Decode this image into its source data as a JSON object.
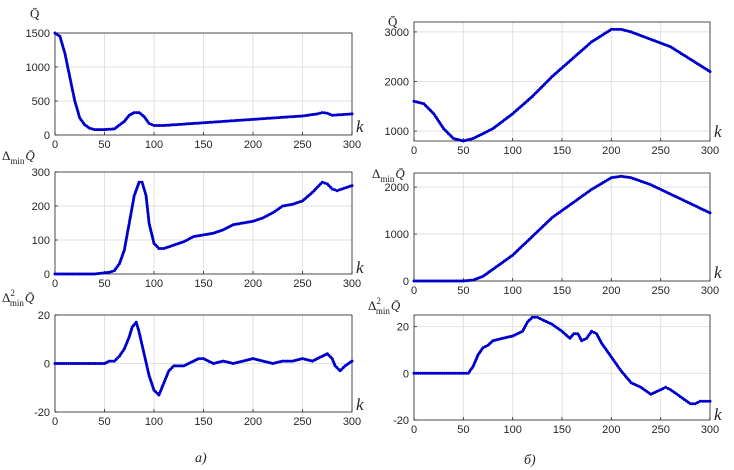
{
  "figure": {
    "caption_left": "а)",
    "caption_right": "б)",
    "series_color": "#0000cc"
  },
  "chart_data": [
    {
      "id": "a1",
      "type": "line",
      "ylabel": "Q̄",
      "xlabel": "k",
      "xlim": [
        0,
        300
      ],
      "ylim": [
        0,
        1500
      ],
      "grid": true,
      "xticks": [
        0,
        50,
        100,
        150,
        200,
        250,
        300
      ],
      "yticks": [
        0,
        500,
        1000,
        1500
      ],
      "x": [
        0,
        5,
        10,
        15,
        20,
        25,
        30,
        35,
        40,
        50,
        60,
        70,
        75,
        80,
        85,
        90,
        95,
        100,
        110,
        120,
        150,
        200,
        250,
        265,
        270,
        275,
        280,
        300
      ],
      "y": [
        1500,
        1450,
        1200,
        850,
        500,
        250,
        150,
        100,
        80,
        80,
        90,
        200,
        290,
        330,
        330,
        270,
        170,
        140,
        140,
        150,
        180,
        230,
        280,
        310,
        330,
        320,
        290,
        310
      ]
    },
    {
      "id": "a2",
      "type": "line",
      "ylabel": "Δmin Q̄",
      "xlabel": "k",
      "xlim": [
        0,
        300
      ],
      "ylim": [
        0,
        300
      ],
      "grid": true,
      "xticks": [
        0,
        50,
        100,
        150,
        200,
        250,
        300
      ],
      "yticks": [
        0,
        100,
        200,
        300
      ],
      "x": [
        0,
        40,
        55,
        60,
        65,
        70,
        75,
        80,
        85,
        88,
        92,
        95,
        100,
        105,
        110,
        120,
        130,
        140,
        150,
        160,
        170,
        180,
        190,
        200,
        210,
        220,
        230,
        240,
        250,
        260,
        265,
        270,
        275,
        280,
        285,
        290,
        300
      ],
      "y": [
        0,
        0,
        5,
        10,
        30,
        70,
        150,
        230,
        270,
        270,
        230,
        150,
        90,
        75,
        75,
        85,
        95,
        110,
        115,
        120,
        130,
        145,
        150,
        155,
        165,
        180,
        200,
        205,
        215,
        240,
        255,
        270,
        265,
        250,
        245,
        250,
        260
      ]
    },
    {
      "id": "a3",
      "type": "line",
      "ylabel": "Δ²min Q̄",
      "xlabel": "k",
      "xlim": [
        0,
        300
      ],
      "ylim": [
        -20,
        20
      ],
      "grid": true,
      "xticks": [
        0,
        50,
        100,
        150,
        200,
        250,
        300
      ],
      "yticks": [
        -20,
        0,
        20
      ],
      "x": [
        0,
        50,
        55,
        60,
        65,
        70,
        75,
        78,
        82,
        85,
        90,
        95,
        100,
        105,
        110,
        115,
        120,
        130,
        140,
        145,
        150,
        160,
        170,
        180,
        190,
        200,
        210,
        220,
        230,
        240,
        250,
        260,
        265,
        270,
        275,
        280,
        283,
        288,
        293,
        300
      ],
      "y": [
        0,
        0,
        1,
        1,
        3,
        6,
        11,
        15,
        17,
        13,
        4,
        -5,
        -11,
        -13,
        -8,
        -3,
        -1,
        -1,
        1,
        2,
        2,
        0,
        1,
        0,
        1,
        2,
        1,
        0,
        1,
        1,
        2,
        1,
        2,
        3,
        4,
        2,
        -1,
        -3,
        -1,
        1
      ]
    },
    {
      "id": "b1",
      "type": "line",
      "ylabel": "Q̄",
      "xlabel": "k",
      "xlim": [
        0,
        300
      ],
      "ylim": [
        800,
        3200
      ],
      "grid": true,
      "xticks": [
        0,
        50,
        100,
        150,
        200,
        250,
        300
      ],
      "yticks": [
        1000,
        2000,
        3000
      ],
      "x": [
        0,
        10,
        20,
        30,
        40,
        50,
        60,
        70,
        80,
        90,
        100,
        120,
        140,
        160,
        180,
        200,
        210,
        220,
        240,
        260,
        280,
        300
      ],
      "y": [
        1600,
        1550,
        1350,
        1050,
        850,
        800,
        850,
        950,
        1050,
        1200,
        1350,
        1700,
        2100,
        2450,
        2800,
        3050,
        3050,
        3000,
        2850,
        2700,
        2450,
        2200
      ]
    },
    {
      "id": "b2",
      "type": "line",
      "ylabel": "Δmin Q̄",
      "xlabel": "k",
      "xlim": [
        0,
        300
      ],
      "ylim": [
        0,
        2300
      ],
      "grid": true,
      "xticks": [
        0,
        50,
        100,
        150,
        200,
        250,
        300
      ],
      "yticks": [
        0,
        1000,
        2000
      ],
      "x": [
        0,
        50,
        60,
        70,
        80,
        90,
        100,
        120,
        140,
        160,
        180,
        200,
        210,
        220,
        240,
        260,
        280,
        300
      ],
      "y": [
        0,
        0,
        20,
        100,
        250,
        400,
        550,
        950,
        1350,
        1650,
        1950,
        2200,
        2230,
        2200,
        2050,
        1850,
        1650,
        1450
      ]
    },
    {
      "id": "b3",
      "type": "line",
      "ylabel": "Δ²min Q̄",
      "xlabel": "k",
      "xlim": [
        0,
        300
      ],
      "ylim": [
        -20,
        25
      ],
      "grid": true,
      "xticks": [
        0,
        50,
        100,
        150,
        200,
        250,
        300
      ],
      "yticks": [
        -20,
        0,
        20
      ],
      "x": [
        0,
        55,
        60,
        65,
        70,
        75,
        80,
        90,
        100,
        110,
        115,
        120,
        125,
        130,
        140,
        150,
        158,
        162,
        166,
        170,
        175,
        180,
        185,
        190,
        200,
        210,
        220,
        230,
        240,
        250,
        255,
        260,
        270,
        280,
        285,
        290,
        300
      ],
      "y": [
        0,
        0,
        3,
        8,
        11,
        12,
        14,
        15,
        16,
        18,
        22,
        24,
        24,
        23,
        21,
        18,
        15,
        17,
        17,
        14,
        15,
        18,
        17,
        13,
        7,
        1,
        -4,
        -6,
        -9,
        -7,
        -6,
        -7,
        -10,
        -13,
        -13,
        -12,
        -12
      ]
    }
  ]
}
